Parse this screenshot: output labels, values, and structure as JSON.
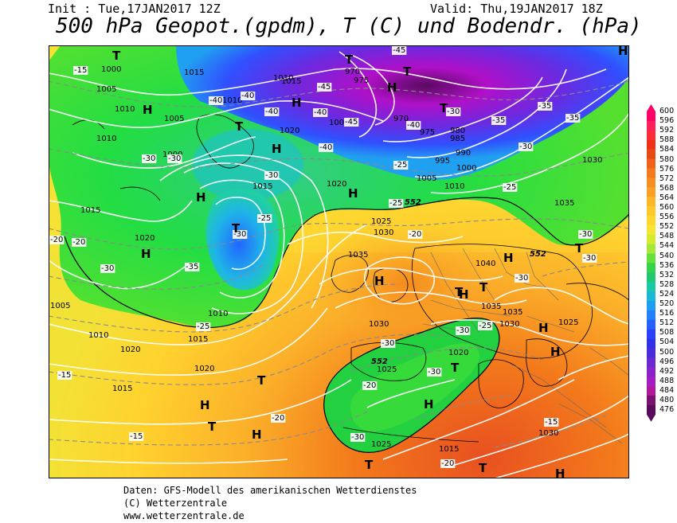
{
  "header": {
    "init": "Init : Tue,17JAN2017 12Z",
    "valid": "Valid: Thu,19JAN2017 18Z",
    "title": "500 hPa Geopot.(gpdm), T (C) und Bodendr. (hPa)"
  },
  "legend": {
    "values": [
      "600",
      "596",
      "592",
      "588",
      "584",
      "580",
      "576",
      "572",
      "568",
      "564",
      "560",
      "556",
      "552",
      "548",
      "544",
      "540",
      "536",
      "532",
      "528",
      "524",
      "520",
      "516",
      "512",
      "508",
      "504",
      "500",
      "496",
      "492",
      "488",
      "484",
      "480",
      "476"
    ],
    "colors": [
      "#ff0066",
      "#ff1f5a",
      "#ff2b3a",
      "#f23016",
      "#e84812",
      "#f06018",
      "#f57a1c",
      "#f88d20",
      "#fba024",
      "#fdb628",
      "#ffc72b",
      "#ffd52f",
      "#f7e532",
      "#d5ec2e",
      "#a6e83a",
      "#66e03a",
      "#33d44a",
      "#20c870",
      "#19c8a5",
      "#1bb8d6",
      "#1e9ef2",
      "#2080ff",
      "#2460ff",
      "#2a40ff",
      "#3030e8",
      "#4a2cdc",
      "#6a28d4",
      "#8a22cc",
      "#a41cc4",
      "#b01898",
      "#7a1070",
      "#5a0a5a"
    ]
  },
  "labels": {
    "pressure": [
      "1000",
      "1005",
      "1010",
      "1015",
      "1010",
      "1005",
      "1010",
      "1015",
      "1020",
      "1010",
      "1000",
      "970",
      "975",
      "970",
      "975",
      "1000",
      "985",
      "980",
      "995",
      "990",
      "1000",
      "1005",
      "1010",
      "1020",
      "1015",
      "1030",
      "1035",
      "1030",
      "1025",
      "1015",
      "1020",
      "1020",
      "1025",
      "1035",
      "1040",
      "1030",
      "1035",
      "1035",
      "1030",
      "1025",
      "1020",
      "1030",
      "1025",
      "1010",
      "1015",
      "1010",
      "1005",
      "1020",
      "1015",
      "1015"
    ],
    "temperature": [
      "-15",
      "-40",
      "-40",
      "-40",
      "-45",
      "-45",
      "-40",
      "-45",
      "-30",
      "-40",
      "-40",
      "-35",
      "-35",
      "-35",
      "-30",
      "-30",
      "-30",
      "-30",
      "-25",
      "-25",
      "-25",
      "-20",
      "-25",
      "-30",
      "-35",
      "-20",
      "-30",
      "-30",
      "-30",
      "-30",
      "-30",
      "-25",
      "-30",
      "-25",
      "-15",
      "-20",
      "-15",
      "-20",
      "-15",
      "-30",
      "-30",
      "-20",
      "-20"
    ],
    "highs_lows": [
      "T",
      "H",
      "H",
      "T",
      "T",
      "H",
      "H",
      "H",
      "H",
      "T",
      "H",
      "H",
      "H",
      "T",
      "T",
      "H",
      "T",
      "T",
      "H",
      "T",
      "H",
      "H",
      "T",
      "H",
      "T",
      "H",
      "T",
      "H",
      "T",
      "T",
      "H"
    ],
    "isoline_552": [
      "552",
      "552",
      "552"
    ]
  },
  "footer": {
    "line1": "Daten: GFS-Modell des amerikanischen Wetterdienstes",
    "line2": "(C) Wetterzentrale",
    "line3": "www.wetterzentrale.de"
  }
}
